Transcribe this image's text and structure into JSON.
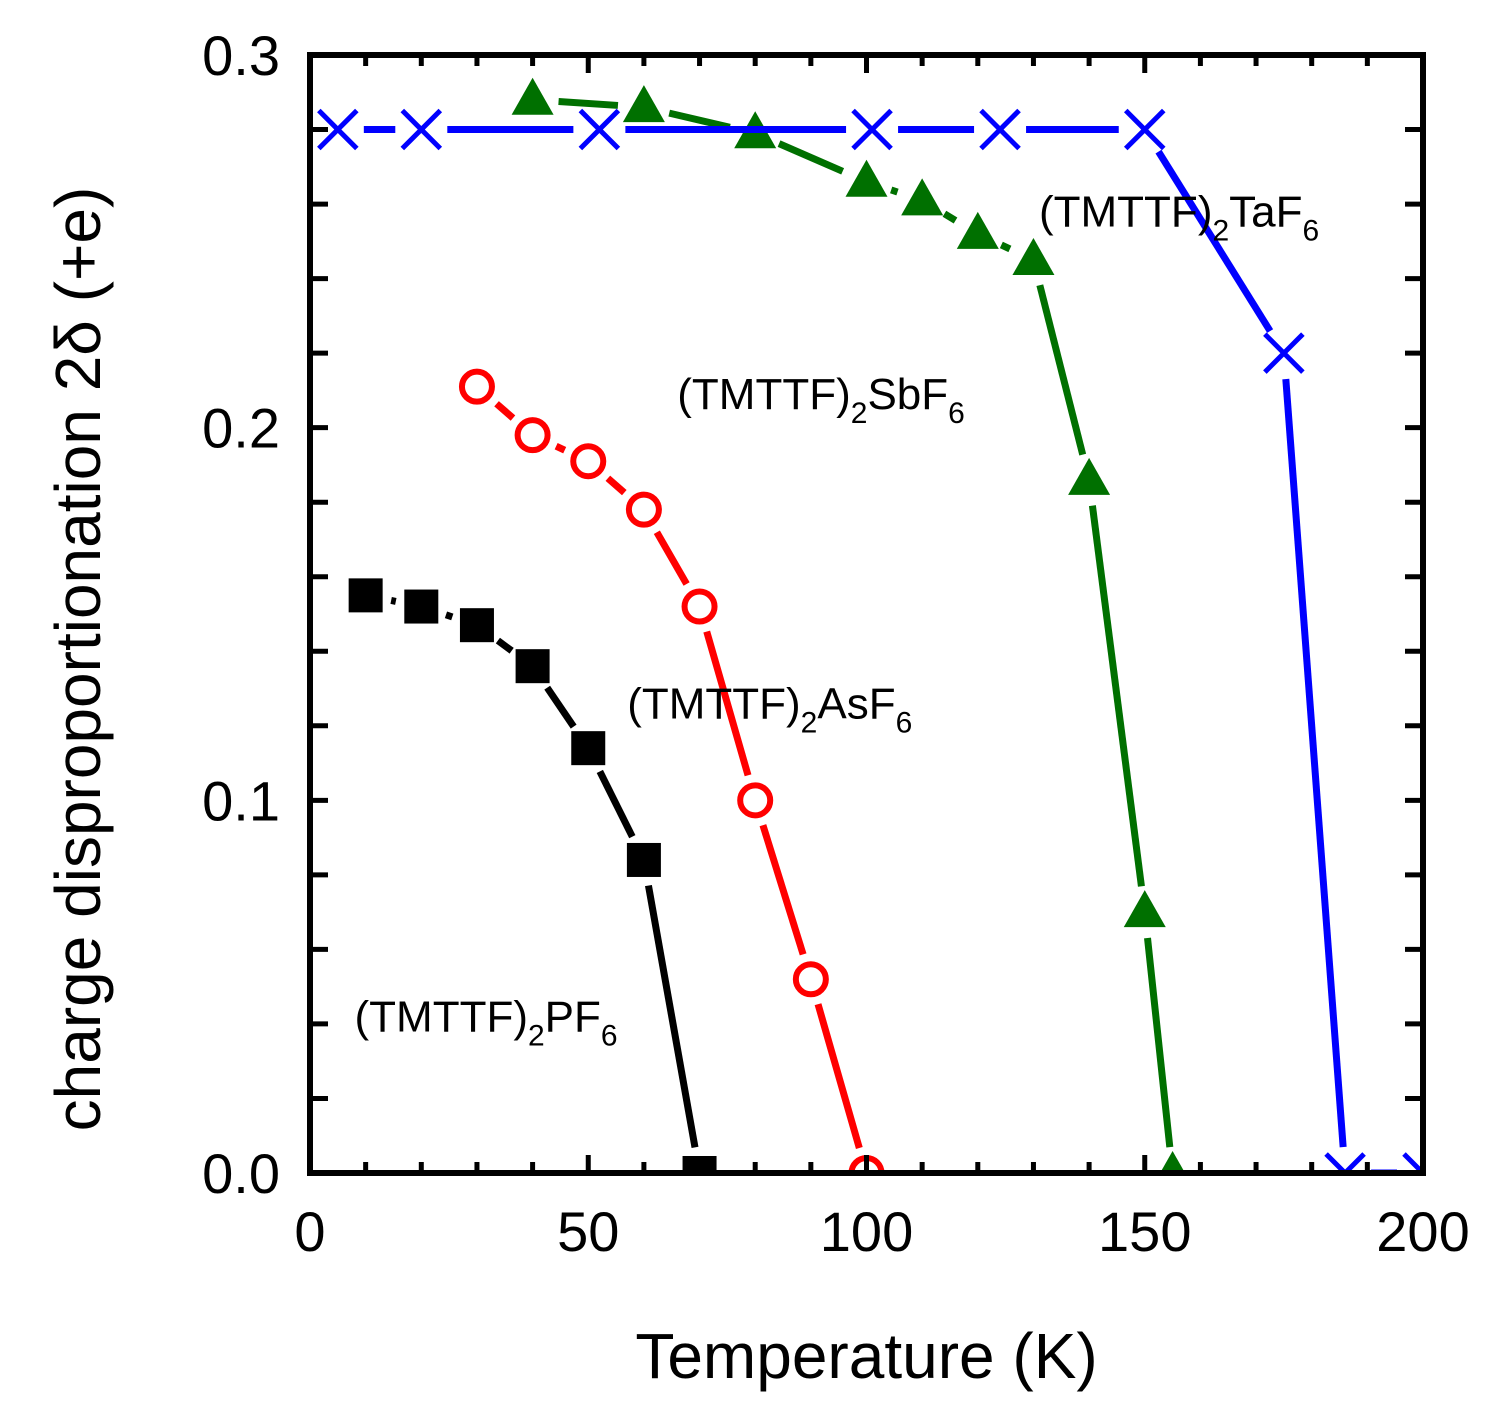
{
  "chart_data": {
    "type": "line",
    "title": "",
    "xlabel": "Temperature (K)",
    "ylabel": "charge disproportionation 2δ (+e)",
    "xlim": [
      0,
      200
    ],
    "ylim": [
      0,
      0.3
    ],
    "x_ticks": [
      0,
      50,
      100,
      150,
      200
    ],
    "x_tick_labels": [
      "0",
      "50",
      "100",
      "150",
      "200"
    ],
    "y_ticks": [
      0,
      0.1,
      0.2,
      0.3
    ],
    "y_tick_labels": [
      "0.0",
      "0.1",
      "0.2",
      "0.3"
    ],
    "grid": false,
    "series": [
      {
        "id": "pf6",
        "name": "(TMTTF)2PF6",
        "label_main": "(TMTTF)",
        "label_sub1": "2",
        "label_anion": "PF",
        "label_sub2": "6",
        "label_at": [
          8,
          0.038
        ],
        "color": "#000000",
        "marker": "square",
        "x": [
          10,
          20,
          30,
          40,
          50,
          60,
          70
        ],
        "y": [
          0.155,
          0.152,
          0.147,
          0.136,
          0.114,
          0.084,
          0.0
        ]
      },
      {
        "id": "asf6",
        "name": "(TMTTF)2AsF6",
        "label_main": "(TMTTF)",
        "label_sub1": "2",
        "label_anion": "AsF",
        "label_sub2": "6",
        "label_at": [
          57,
          0.122
        ],
        "color": "#ff0000",
        "marker": "circle",
        "x": [
          30,
          40,
          50,
          60,
          70,
          80,
          90,
          100
        ],
        "y": [
          0.211,
          0.198,
          0.191,
          0.178,
          0.152,
          0.1,
          0.052,
          0.0
        ]
      },
      {
        "id": "sbf6",
        "name": "(TMTTF)2SbF6",
        "label_main": "(TMTTF)",
        "label_sub1": "2",
        "label_anion": "SbF",
        "label_sub2": "6",
        "label_at": [
          66,
          0.205
        ],
        "color": "#007000",
        "marker": "triangle",
        "x": [
          40,
          60,
          80,
          100,
          110,
          120,
          130,
          140,
          150,
          155
        ],
        "y": [
          0.288,
          0.286,
          0.279,
          0.266,
          0.261,
          0.252,
          0.245,
          0.186,
          0.07,
          0.0
        ]
      },
      {
        "id": "taf6",
        "name": "(TMTTF)2TaF6",
        "label_main": "(TMTTF)",
        "label_sub1": "2",
        "label_anion": "TaF",
        "label_sub2": "6",
        "label_at": [
          131,
          0.254
        ],
        "color": "#0000ff",
        "marker": "cross",
        "x": [
          5,
          20,
          52,
          101,
          124,
          150,
          175,
          186,
          200
        ],
        "y": [
          0.28,
          0.28,
          0.28,
          0.28,
          0.28,
          0.28,
          0.22,
          0.0,
          0.0
        ]
      }
    ]
  }
}
